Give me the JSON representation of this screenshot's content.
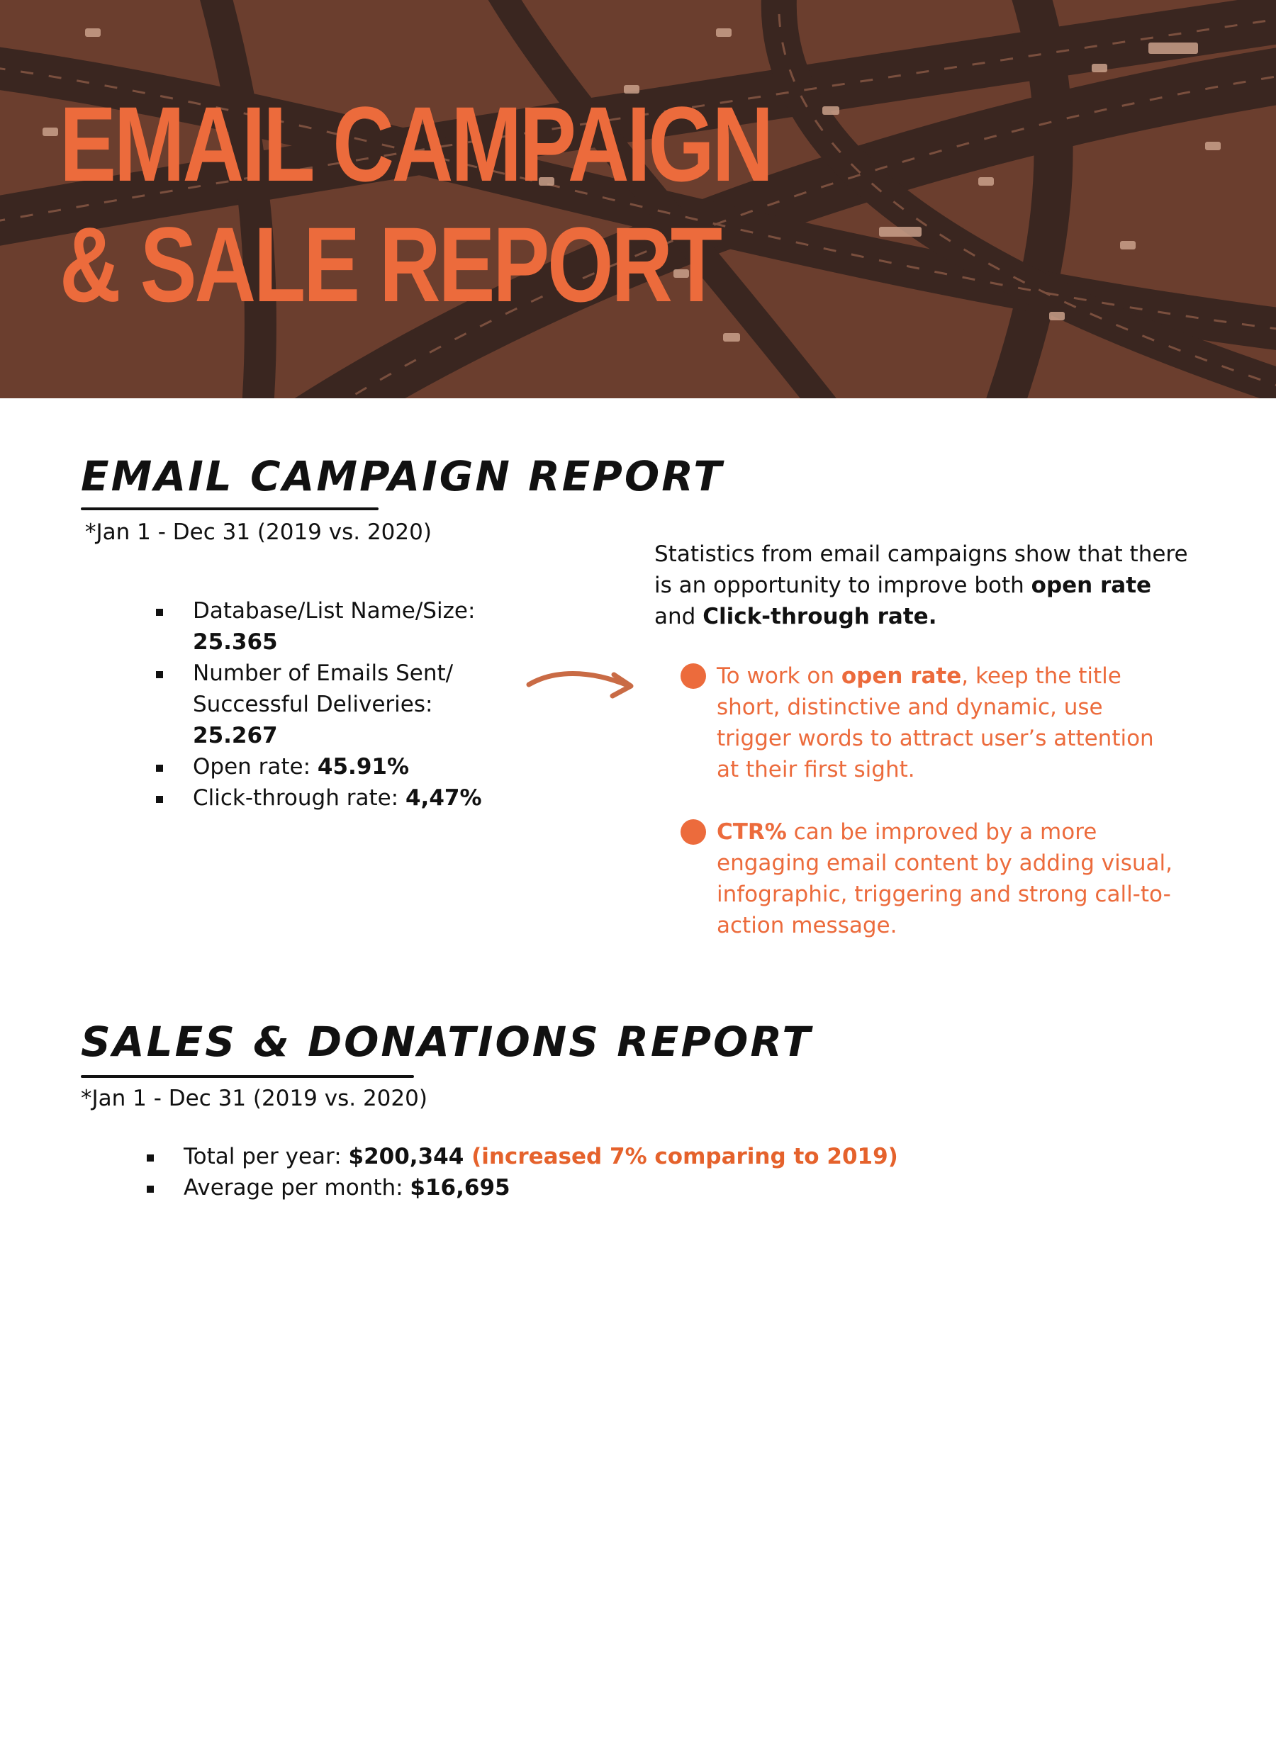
{
  "colors": {
    "accent": "#ec6b3c",
    "hero_tint": "#6e4030",
    "text": "#111111"
  },
  "hero": {
    "title_line1": "EMAIL CAMPAIGN",
    "title_line2": "& SALE REPORT"
  },
  "email_section": {
    "heading": "EMAIL CAMPAIGN REPORT",
    "date_note": "*Jan 1 - Dec 31 (2019 vs. 2020)",
    "items": [
      {
        "label": "Database/List Name/Size:",
        "value": "25.365"
      },
      {
        "label": "Number of Emails Sent/ Successful Deliveries:",
        "value": "25.267"
      },
      {
        "label": "Open rate: ",
        "value": "45.91%"
      },
      {
        "label": "Click-through rate: ",
        "value": "4,47%"
      }
    ],
    "intro": {
      "text_before": "Statistics from email campaigns show that there is an opportunity to improve both ",
      "bold1": "open rate",
      "text_mid": " and ",
      "bold2": "Click-through rate."
    },
    "tips": [
      {
        "pre": "To work on ",
        "bold": "open rate",
        "post": ", keep the title short, distinctive and dynamic, use trigger words to attract user’s attention at their first sight."
      },
      {
        "pre": "",
        "bold": "CTR%",
        "post": " can be improved by a more engaging email content by adding visual, infographic, triggering and strong call-to-action message."
      }
    ],
    "arrow_icon": "curved-arrow-right-icon"
  },
  "sales_section": {
    "heading": "SALES & DONATIONS REPORT",
    "date_note": "*Jan 1 - Dec 31 (2019 vs. 2020)",
    "items": [
      {
        "label": "Total per year: ",
        "value": "$200,344",
        "note": " (increased 7% comparing to 2019)"
      },
      {
        "label": "Average per month: ",
        "value": "$16,695"
      }
    ]
  }
}
